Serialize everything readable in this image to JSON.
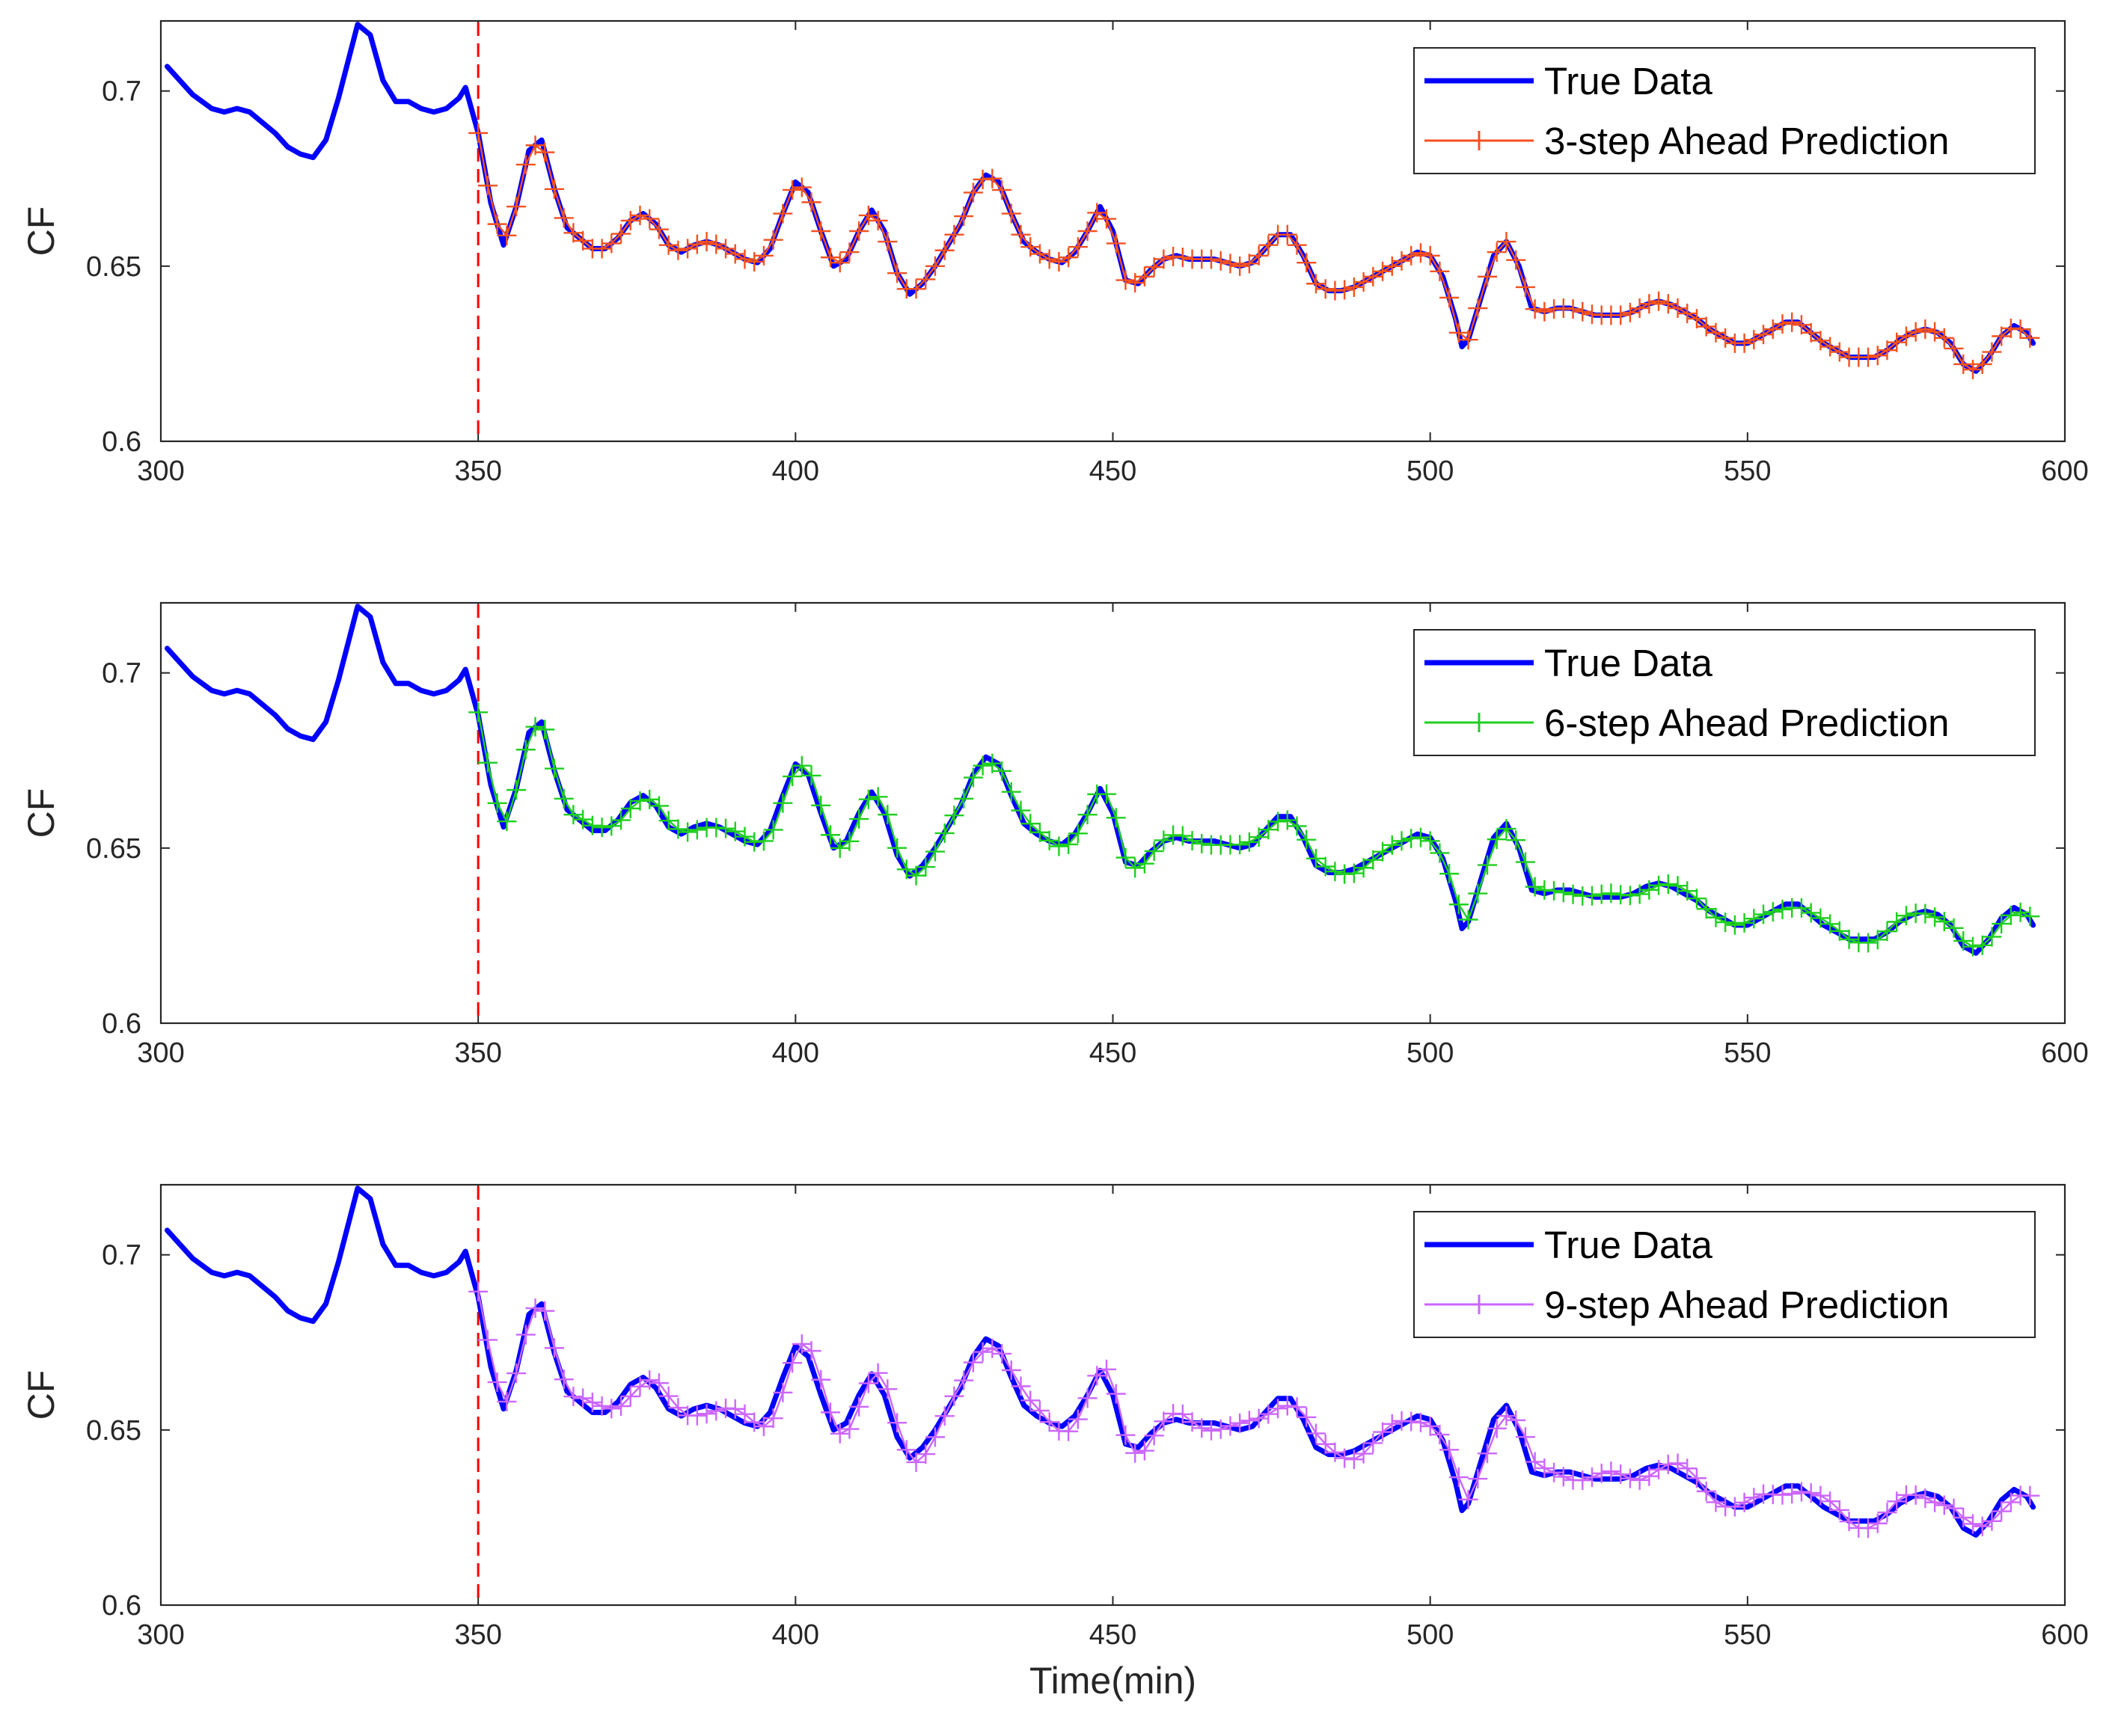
{
  "chart_data": [
    {
      "type": "line",
      "ylabel": "CF",
      "xlabel": "",
      "xlim": [
        300,
        600
      ],
      "ylim": [
        0.6,
        0.72
      ],
      "xticks": [
        "300",
        "350",
        "400",
        "450",
        "500",
        "550",
        "600"
      ],
      "yticks": [
        "0.6",
        "0.65",
        "0.7"
      ],
      "split_x": 350,
      "legend_position": "top-right",
      "series": [
        {
          "name": "True Data",
          "color": "#0000ff"
        },
        {
          "name": "3-step Ahead Prediction",
          "color": "#f4511e",
          "marker": "+",
          "offset": 0
        }
      ]
    },
    {
      "type": "line",
      "ylabel": "CF",
      "xlabel": "",
      "xlim": [
        300,
        600
      ],
      "ylim": [
        0.6,
        0.72
      ],
      "xticks": [
        "300",
        "350",
        "400",
        "450",
        "500",
        "550",
        "600"
      ],
      "yticks": [
        "0.6",
        "0.65",
        "0.7"
      ],
      "split_x": 350,
      "legend_position": "top-right",
      "series": [
        {
          "name": "True Data",
          "color": "#0000ff"
        },
        {
          "name": "6-step Ahead Prediction",
          "color": "#1fcf1f",
          "marker": "+",
          "offset": 1
        }
      ]
    },
    {
      "type": "line",
      "ylabel": "CF",
      "xlabel": "Time(min)",
      "xlim": [
        300,
        600
      ],
      "ylim": [
        0.6,
        0.72
      ],
      "xticks": [
        "300",
        "350",
        "400",
        "450",
        "500",
        "550",
        "600"
      ],
      "yticks": [
        "0.6",
        "0.65",
        "0.7"
      ],
      "split_x": 350,
      "legend_position": "top-right",
      "series": [
        {
          "name": "True Data",
          "color": "#0000ff"
        },
        {
          "name": "9-step Ahead Prediction",
          "color": "#cc66ff",
          "marker": "+",
          "offset": 2
        }
      ]
    }
  ],
  "true_data": {
    "x": [
      301,
      303,
      305,
      308,
      310,
      312,
      314,
      316,
      318,
      320,
      322,
      324,
      326,
      328,
      330,
      331,
      333,
      335,
      337,
      339,
      341,
      343,
      345,
      347,
      348,
      350,
      352,
      354,
      356,
      358,
      360,
      362,
      364,
      366,
      368,
      370,
      372,
      374,
      376,
      378,
      380,
      382,
      384,
      386,
      388,
      390,
      392,
      394,
      396,
      398,
      400,
      402,
      404,
      406,
      408,
      410,
      412,
      414,
      416,
      418,
      420,
      422,
      424,
      426,
      428,
      430,
      432,
      434,
      436,
      438,
      440,
      442,
      444,
      446,
      448,
      450,
      452,
      454,
      456,
      458,
      460,
      462,
      464,
      466,
      468,
      470,
      472,
      474,
      476,
      478,
      480,
      482,
      484,
      486,
      488,
      490,
      492,
      494,
      496,
      498,
      500,
      502,
      504,
      505,
      506,
      508,
      510,
      512,
      514,
      516,
      518,
      520,
      522,
      524,
      526,
      528,
      530,
      532,
      534,
      536,
      538,
      540,
      542,
      544,
      546,
      548,
      550,
      552,
      554,
      556,
      558,
      560,
      562,
      564,
      566,
      568,
      570,
      572,
      574,
      576,
      578,
      580,
      582,
      584,
      586,
      588,
      590,
      592,
      594,
      595
    ],
    "y": [
      0.707,
      0.703,
      0.699,
      0.695,
      0.694,
      0.695,
      0.694,
      0.691,
      0.688,
      0.684,
      0.682,
      0.681,
      0.686,
      0.698,
      0.712,
      0.719,
      0.716,
      0.703,
      0.697,
      0.697,
      0.695,
      0.694,
      0.695,
      0.698,
      0.701,
      0.688,
      0.668,
      0.656,
      0.667,
      0.683,
      0.686,
      0.672,
      0.661,
      0.658,
      0.655,
      0.655,
      0.658,
      0.663,
      0.665,
      0.662,
      0.656,
      0.654,
      0.656,
      0.657,
      0.656,
      0.654,
      0.652,
      0.651,
      0.655,
      0.665,
      0.674,
      0.671,
      0.66,
      0.65,
      0.652,
      0.66,
      0.666,
      0.66,
      0.648,
      0.642,
      0.645,
      0.65,
      0.656,
      0.662,
      0.671,
      0.676,
      0.674,
      0.665,
      0.657,
      0.654,
      0.652,
      0.651,
      0.654,
      0.66,
      0.667,
      0.66,
      0.646,
      0.645,
      0.649,
      0.652,
      0.653,
      0.652,
      0.652,
      0.652,
      0.651,
      0.65,
      0.651,
      0.655,
      0.659,
      0.659,
      0.653,
      0.645,
      0.643,
      0.643,
      0.644,
      0.646,
      0.648,
      0.65,
      0.652,
      0.654,
      0.653,
      0.647,
      0.635,
      0.627,
      0.629,
      0.641,
      0.653,
      0.657,
      0.65,
      0.638,
      0.637,
      0.638,
      0.638,
      0.637,
      0.636,
      0.636,
      0.636,
      0.637,
      0.639,
      0.64,
      0.639,
      0.637,
      0.635,
      0.632,
      0.63,
      0.628,
      0.628,
      0.63,
      0.632,
      0.634,
      0.634,
      0.631,
      0.628,
      0.626,
      0.624,
      0.624,
      0.624,
      0.626,
      0.629,
      0.631,
      0.632,
      0.631,
      0.628,
      0.622,
      0.62,
      0.624,
      0.63,
      0.633,
      0.631,
      0.628
    ]
  }
}
